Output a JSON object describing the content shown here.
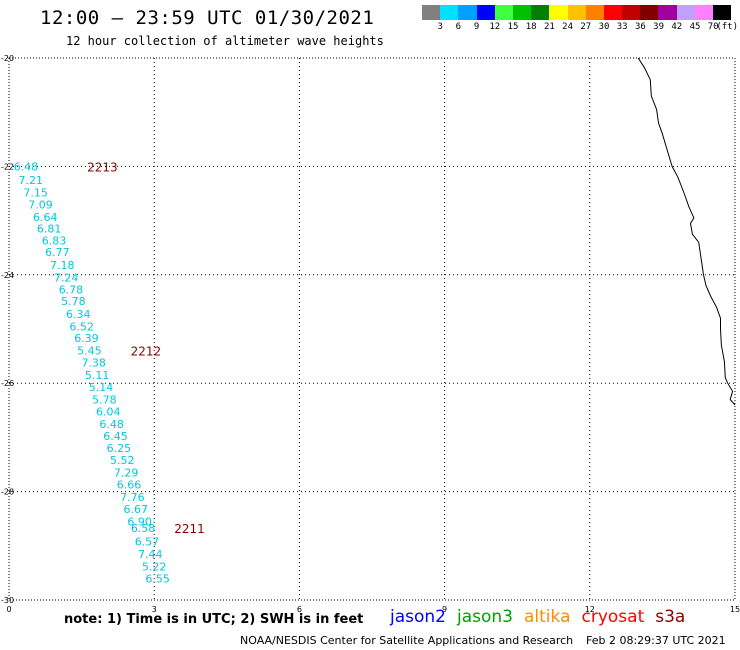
{
  "header": {
    "title": "12:00 – 23:59 UTC 01/30/2021",
    "subtitle": "12 hour collection of altimeter wave heights"
  },
  "colorbar": {
    "colors": [
      "#808080",
      "#00e0ff",
      "#00a0ff",
      "#0000ff",
      "#40ff40",
      "#00c000",
      "#008000",
      "#ffff00",
      "#ffc000",
      "#ff8000",
      "#ff0000",
      "#c00000",
      "#800000",
      "#a000a0",
      "#c0a0ff",
      "#ff80ff",
      "#000000"
    ],
    "labels": [
      "3",
      "6",
      "9",
      "12",
      "15",
      "18",
      "21",
      "24",
      "27",
      "30",
      "33",
      "36",
      "39",
      "42",
      "45",
      "70",
      "(ft)"
    ]
  },
  "map": {
    "x_range": [
      0,
      15
    ],
    "y_range": [
      -20,
      -30
    ],
    "x_ticks": [
      "0",
      "3",
      "6",
      "9",
      "12",
      "15"
    ],
    "y_ticks": [
      "-20",
      "-22",
      "-24",
      "-26",
      "-28",
      "-30"
    ],
    "swh_color": "#00c8e0",
    "time_color": "#8b0000",
    "coastline_color": "#000000",
    "swh_labels": [
      {
        "text": "6.48",
        "x": 0.35,
        "y": -22.0
      },
      {
        "text": "7.21",
        "x": 0.45,
        "y": -22.25
      },
      {
        "text": "7.15",
        "x": 0.55,
        "y": -22.48
      },
      {
        "text": "7.09",
        "x": 0.65,
        "y": -22.7
      },
      {
        "text": "6.64",
        "x": 0.75,
        "y": -22.93
      },
      {
        "text": "6.81",
        "x": 0.83,
        "y": -23.15
      },
      {
        "text": "6.83",
        "x": 0.93,
        "y": -23.37
      },
      {
        "text": "6.77",
        "x": 1.0,
        "y": -23.58
      },
      {
        "text": "7.18",
        "x": 1.1,
        "y": -23.82
      },
      {
        "text": "7.24",
        "x": 1.18,
        "y": -24.05
      },
      {
        "text": "6.78",
        "x": 1.28,
        "y": -24.27
      },
      {
        "text": "5.78",
        "x": 1.33,
        "y": -24.48
      },
      {
        "text": "6.34",
        "x": 1.43,
        "y": -24.72
      },
      {
        "text": "6.52",
        "x": 1.5,
        "y": -24.95
      },
      {
        "text": "6.39",
        "x": 1.6,
        "y": -25.17
      },
      {
        "text": "5.45",
        "x": 1.66,
        "y": -25.4
      },
      {
        "text": "7.38",
        "x": 1.75,
        "y": -25.62
      },
      {
        "text": "5.11",
        "x": 1.82,
        "y": -25.85
      },
      {
        "text": "5.14",
        "x": 1.9,
        "y": -26.07
      },
      {
        "text": "5.78",
        "x": 1.97,
        "y": -26.3
      },
      {
        "text": "6.04",
        "x": 2.05,
        "y": -26.52
      },
      {
        "text": "6.48",
        "x": 2.12,
        "y": -26.75
      },
      {
        "text": "6.45",
        "x": 2.2,
        "y": -26.97
      },
      {
        "text": "6.25",
        "x": 2.27,
        "y": -27.2
      },
      {
        "text": "5.52",
        "x": 2.34,
        "y": -27.42
      },
      {
        "text": "7.29",
        "x": 2.42,
        "y": -27.65
      },
      {
        "text": "6.66",
        "x": 2.48,
        "y": -27.87
      },
      {
        "text": "7.76",
        "x": 2.55,
        "y": -28.1
      },
      {
        "text": "6.67",
        "x": 2.62,
        "y": -28.32
      },
      {
        "text": "6.90",
        "x": 2.7,
        "y": -28.55
      },
      {
        "text": "6.58",
        "x": 2.77,
        "y": -28.67
      },
      {
        "text": "6.57",
        "x": 2.85,
        "y": -28.92
      },
      {
        "text": "7.44",
        "x": 2.92,
        "y": -29.15
      },
      {
        "text": "5.22",
        "x": 3.0,
        "y": -29.38
      },
      {
        "text": "6.55",
        "x": 3.07,
        "y": -29.6
      }
    ],
    "time_labels": [
      {
        "text": "2213",
        "x": 1.2,
        "y": -22.0
      },
      {
        "text": "2212",
        "x": 2.1,
        "y": -25.4
      },
      {
        "text": "2211",
        "x": 3.0,
        "y": -28.67
      }
    ],
    "coastline": [
      [
        13.0,
        -20.0
      ],
      [
        13.13,
        -20.18
      ],
      [
        13.25,
        -20.4
      ],
      [
        13.27,
        -20.7
      ],
      [
        13.38,
        -20.95
      ],
      [
        13.42,
        -21.2
      ],
      [
        13.5,
        -21.4
      ],
      [
        13.6,
        -21.7
      ],
      [
        13.7,
        -22.0
      ],
      [
        13.82,
        -22.2
      ],
      [
        13.95,
        -22.5
      ],
      [
        14.05,
        -22.75
      ],
      [
        14.15,
        -22.95
      ],
      [
        14.08,
        -23.05
      ],
      [
        14.12,
        -23.25
      ],
      [
        14.25,
        -23.4
      ],
      [
        14.3,
        -23.7
      ],
      [
        14.35,
        -24.0
      ],
      [
        14.4,
        -24.2
      ],
      [
        14.5,
        -24.4
      ],
      [
        14.62,
        -24.6
      ],
      [
        14.7,
        -24.8
      ],
      [
        14.7,
        -25.0
      ],
      [
        14.72,
        -25.3
      ],
      [
        14.78,
        -25.6
      ],
      [
        14.8,
        -25.9
      ],
      [
        14.85,
        -26.0
      ],
      [
        14.95,
        -26.15
      ],
      [
        14.9,
        -26.3
      ],
      [
        15.0,
        -26.4
      ]
    ]
  },
  "note": "note:  1) Time is in UTC;  2) SWH is in feet",
  "legend": [
    {
      "name": "jason2",
      "color": "#0000ff"
    },
    {
      "name": "jason3",
      "color": "#00a000"
    },
    {
      "name": "altika",
      "color": "#ff8c00"
    },
    {
      "name": "cryosat",
      "color": "#ff0000"
    },
    {
      "name": "s3a",
      "color": "#8b0000"
    }
  ],
  "footer": {
    "credit": "NOAA/NESDIS Center for Satellite Applications and Research",
    "timestamp": "Feb  2 08:29:37 UTC 2021"
  }
}
